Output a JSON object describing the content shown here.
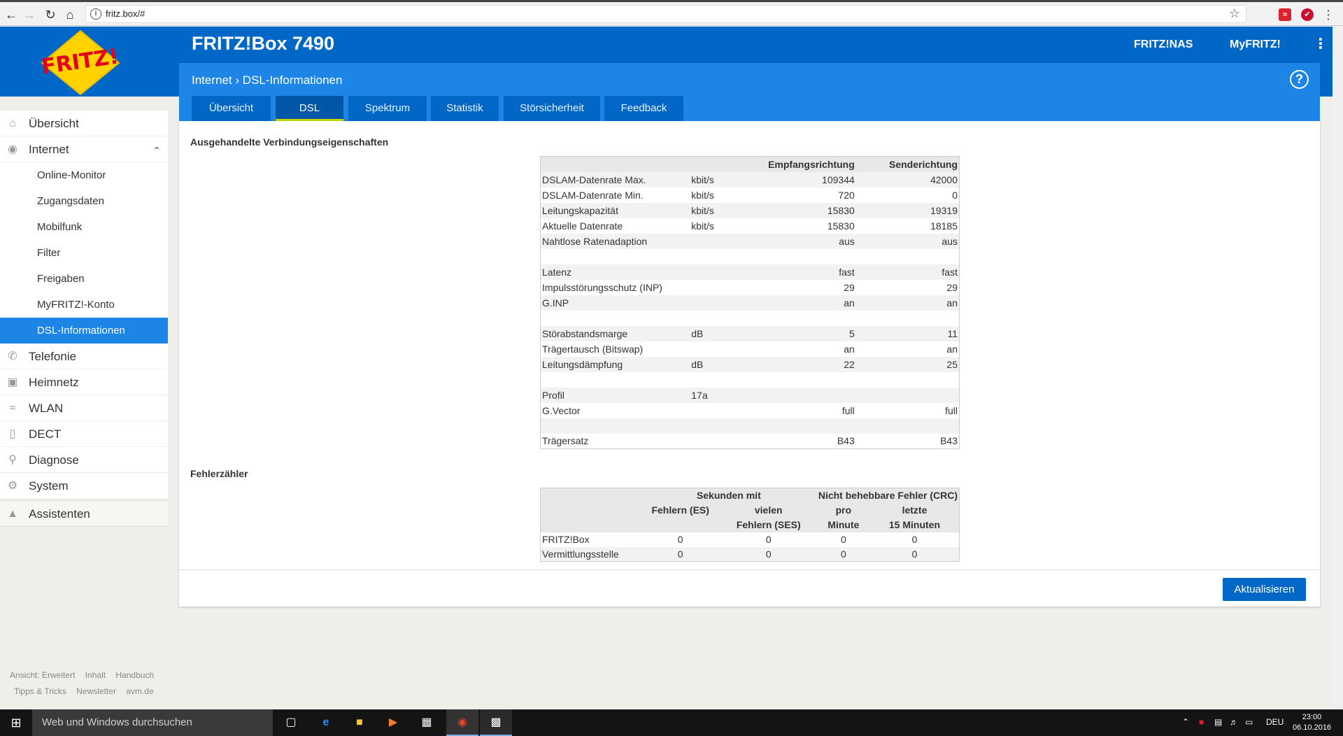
{
  "browser": {
    "url": "fritz.box/#"
  },
  "header": {
    "product": "FRITZ!Box 7490",
    "links": [
      "FRITZ!NAS",
      "MyFRITZ!"
    ],
    "breadcrumb_parent": "Internet",
    "breadcrumb_current": "DSL-Informationen",
    "help": "?"
  },
  "tabs": [
    "Übersicht",
    "DSL",
    "Spektrum",
    "Statistik",
    "Störsicherheit",
    "Feedback"
  ],
  "active_tab": "DSL",
  "sidebar": {
    "items": [
      "Übersicht",
      "Internet"
    ],
    "internet_sub": [
      "Online-Monitor",
      "Zugangsdaten",
      "Mobilfunk",
      "Filter",
      "Freigaben",
      "MyFRITZ!-Konto",
      "DSL-Informationen"
    ],
    "items_after": [
      "Telefonie",
      "Heimnetz",
      "WLAN",
      "DECT",
      "Diagnose",
      "System"
    ],
    "assist": "Assistenten"
  },
  "footer": {
    "row1": [
      "Ansicht: Erweitert",
      "Inhalt",
      "Handbuch"
    ],
    "row2": [
      "Tipps & Tricks",
      "Newsletter",
      "avm.de"
    ]
  },
  "conn": {
    "title": "Ausgehandelte Verbindungseigenschaften",
    "col_down": "Empfangsrichtung",
    "col_up": "Senderichtung",
    "rows": [
      {
        "label": "DSLAM-Datenrate Max.",
        "unit": "kbit/s",
        "down": "109344",
        "up": "42000"
      },
      {
        "label": "DSLAM-Datenrate Min.",
        "unit": "kbit/s",
        "down": "720",
        "up": "0"
      },
      {
        "label": "Leitungskapazität",
        "unit": "kbit/s",
        "down": "15830",
        "up": "19319"
      },
      {
        "label": "Aktuelle Datenrate",
        "unit": "kbit/s",
        "down": "15830",
        "up": "18185"
      },
      {
        "label": "Nahtlose Ratenadaption",
        "unit": "",
        "down": "aus",
        "up": "aus"
      },
      {
        "label": "",
        "unit": "",
        "down": "",
        "up": ""
      },
      {
        "label": "Latenz",
        "unit": "",
        "down": "fast",
        "up": "fast"
      },
      {
        "label": "Impulsstörungsschutz (INP)",
        "unit": "",
        "down": "29",
        "up": "29"
      },
      {
        "label": "G.INP",
        "unit": "",
        "down": "an",
        "up": "an"
      },
      {
        "label": "",
        "unit": "",
        "down": "",
        "up": ""
      },
      {
        "label": "Störabstandsmarge",
        "unit": "dB",
        "down": "5",
        "up": "11"
      },
      {
        "label": "Trägertausch (Bitswap)",
        "unit": "",
        "down": "an",
        "up": "an"
      },
      {
        "label": "Leitungsdämpfung",
        "unit": "dB",
        "down": "22",
        "up": "25"
      },
      {
        "label": "",
        "unit": "",
        "down": "",
        "up": ""
      },
      {
        "label": "Profil",
        "unit": "17a",
        "down": "",
        "up": ""
      },
      {
        "label": "G.Vector",
        "unit": "",
        "down": "full",
        "up": "full"
      },
      {
        "label": "",
        "unit": "",
        "down": "",
        "up": ""
      },
      {
        "label": "Trägersatz",
        "unit": "",
        "down": "B43",
        "up": "B43"
      }
    ]
  },
  "errors": {
    "title": "Fehlerzähler",
    "group1": "Sekunden mit",
    "group2": "Nicht behebbare Fehler (CRC)",
    "col_es": "Fehlern (ES)",
    "col_ses_1": "vielen",
    "col_ses_2": "Fehlern (SES)",
    "col_pm_1": "pro",
    "col_pm_2": "Minute",
    "col_15_1": "letzte",
    "col_15_2": "15 Minuten",
    "rows": [
      {
        "label": "FRITZ!Box",
        "es": "0",
        "ses": "0",
        "pm": "0",
        "m15": "0"
      },
      {
        "label": "Vermittlungsstelle",
        "es": "0",
        "ses": "0",
        "pm": "0",
        "m15": "0"
      }
    ]
  },
  "update_button": "Aktualisieren",
  "taskbar": {
    "search": "Web und Windows durchsuchen",
    "lang": "DEU",
    "time": "23:00",
    "date": "06.10.2016"
  },
  "colors": {
    "brand_blue": "#0067c6",
    "tab_highlight": "#c8d800",
    "active_side": "#1c85e6"
  }
}
